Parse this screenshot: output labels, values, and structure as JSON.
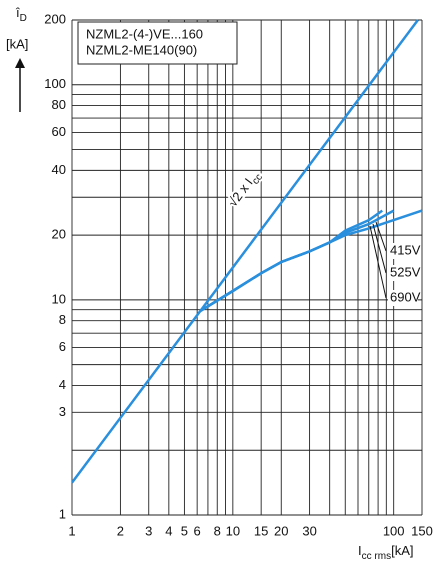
{
  "chart_data": {
    "type": "line",
    "log_x": true,
    "log_y": true,
    "xlim": [
      1,
      150
    ],
    "ylim": [
      1,
      200
    ],
    "xticks": [
      1,
      2,
      3,
      4,
      5,
      6,
      8,
      10,
      15,
      20,
      30,
      100,
      150
    ],
    "yticks": [
      1,
      3,
      4,
      6,
      8,
      10,
      20,
      40,
      60,
      80,
      100,
      200
    ],
    "xgrid": [
      1,
      2,
      3,
      4,
      5,
      6,
      7,
      8,
      9,
      10,
      15,
      20,
      30,
      40,
      50,
      60,
      70,
      80,
      90,
      100,
      150
    ],
    "ygrid": [
      1,
      2,
      3,
      4,
      5,
      6,
      7,
      8,
      9,
      10,
      20,
      30,
      40,
      50,
      60,
      70,
      80,
      90,
      100,
      200
    ],
    "x_label": {
      "main": "I",
      "sub": "cc rms",
      "unit": "[kA]"
    },
    "y_label": {
      "main": "î",
      "sub": "D",
      "unit": "[kA]"
    },
    "annotation": [
      "NZML2-(4-)VE...160",
      "NZML2-ME140(90)"
    ],
    "line_label": {
      "main": "√2 x I",
      "sub": "cc"
    },
    "series": [
      {
        "name": "415V",
        "color": "#2a8fdc",
        "x": [
          6.3,
          10,
          15,
          20,
          30,
          40,
          50,
          70,
          100,
          150
        ],
        "values": [
          8.9,
          11,
          13.3,
          15,
          16.8,
          18.5,
          20,
          21.5,
          23.5,
          26
        ]
      },
      {
        "name": "525V",
        "color": "#2a8fdc",
        "x": [
          6.3,
          10,
          15,
          20,
          30,
          40,
          50,
          70,
          100
        ],
        "values": [
          8.9,
          11,
          13.3,
          15,
          16.8,
          18.5,
          20.5,
          22.5,
          26
        ]
      },
      {
        "name": "690V",
        "color": "#2a8fdc",
        "x": [
          6.3,
          10,
          15,
          20,
          30,
          40,
          50,
          70,
          85
        ],
        "values": [
          8.9,
          11,
          13.3,
          15,
          16.8,
          18.5,
          21,
          23.5,
          26
        ]
      },
      {
        "color": "#2a8fdc",
        "x": [
          1,
          141.4
        ],
        "values": [
          1.414,
          200
        ]
      }
    ],
    "grid": true
  }
}
